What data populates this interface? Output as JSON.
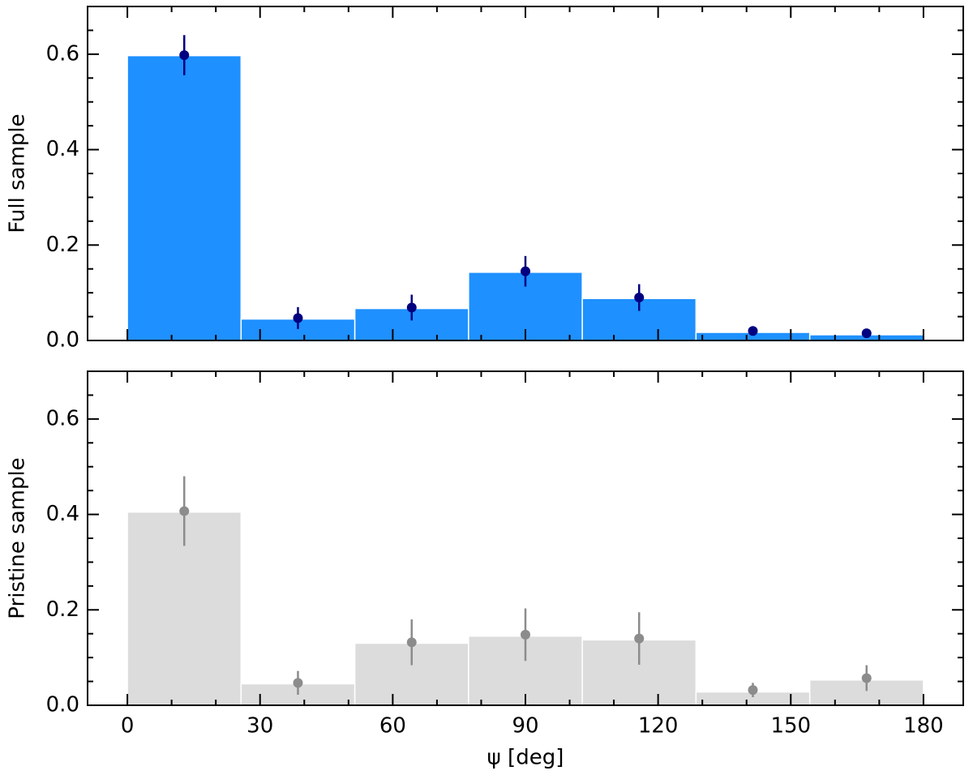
{
  "chart_data": [
    {
      "type": "histogram",
      "ylabel": "Full sample",
      "bins": [
        0,
        25.71,
        51.43,
        77.14,
        102.86,
        128.57,
        154.29,
        180
      ],
      "values": [
        0.597,
        0.045,
        0.067,
        0.143,
        0.088,
        0.017,
        0.012
      ],
      "color": "#1e90ff",
      "points": {
        "x": [
          12.86,
          38.57,
          64.29,
          90,
          115.71,
          141.43,
          167.14
        ],
        "values": [
          0.598,
          0.047,
          0.069,
          0.145,
          0.09,
          0.02,
          0.015
        ],
        "errors": [
          0.042,
          0.023,
          0.027,
          0.032,
          0.028,
          0.005,
          0.005
        ],
        "color": "#000080"
      },
      "xlim": [
        -9,
        189
      ],
      "xticks": [
        0,
        30,
        60,
        90,
        120,
        150,
        180
      ],
      "xtick_labels": false,
      "minor_xticks": [
        10,
        20,
        40,
        50,
        70,
        80,
        100,
        110,
        130,
        140,
        160,
        170
      ],
      "ylim": [
        0,
        0.7
      ],
      "yticks": [
        {
          "value": 0,
          "label": "0.0"
        },
        0.2,
        0.4,
        0.6
      ],
      "minor_yticks": [
        0.05,
        0.1,
        0.15,
        0.25,
        0.3,
        0.35,
        0.45,
        0.5,
        0.55,
        0.65
      ]
    },
    {
      "type": "histogram",
      "ylabel": "Pristine sample",
      "xlabel": "ψ [deg]",
      "bins": [
        0,
        25.71,
        51.43,
        77.14,
        102.86,
        128.57,
        154.29,
        180
      ],
      "values": [
        0.405,
        0.045,
        0.13,
        0.145,
        0.137,
        0.028,
        0.053
      ],
      "color": "#dcdcdc",
      "points": {
        "x": [
          12.86,
          38.57,
          64.29,
          90,
          115.71,
          141.43,
          167.14
        ],
        "values": [
          0.407,
          0.047,
          0.132,
          0.148,
          0.14,
          0.032,
          0.057
        ],
        "errors": [
          0.073,
          0.025,
          0.048,
          0.055,
          0.055,
          0.015,
          0.027
        ],
        "color": "#8c8c8c"
      },
      "xlim": [
        -9,
        189
      ],
      "xticks": [
        0,
        30,
        60,
        90,
        120,
        150,
        180
      ],
      "xtick_labels": true,
      "minor_xticks": [
        10,
        20,
        40,
        50,
        70,
        80,
        100,
        110,
        130,
        140,
        160,
        170
      ],
      "ylim": [
        0,
        0.7
      ],
      "yticks": [
        {
          "value": 0,
          "label": "0.0"
        },
        0.2,
        0.4,
        0.6
      ],
      "minor_yticks": [
        0.05,
        0.1,
        0.15,
        0.25,
        0.3,
        0.35,
        0.45,
        0.5,
        0.55,
        0.65
      ]
    }
  ]
}
